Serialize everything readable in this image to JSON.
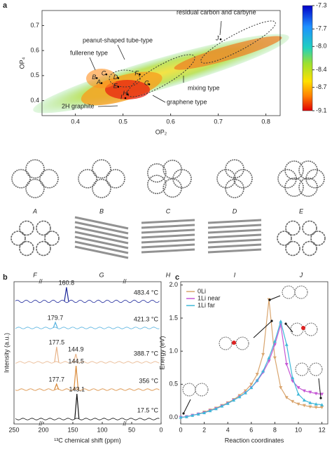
{
  "chart_data": [
    {
      "type": "scatter",
      "panel": "a",
      "x_label": "OP₂",
      "y_label": "OP₄",
      "xlim": [
        0.33,
        0.83
      ],
      "ylim": [
        0.34,
        0.76
      ],
      "xticks": [
        0.4,
        0.5,
        0.6,
        0.7,
        0.8
      ],
      "yticks": [
        0.4,
        0.5,
        0.6,
        0.7
      ],
      "colorbar": {
        "lim": [
          -9.1,
          -7.3
        ],
        "ticks": [
          -7.3,
          -7.7,
          {
            "value": -8,
            "label": "-8.0"
          },
          -8.4,
          -8.7,
          -9.1
        ]
      },
      "annotations": [
        "residual carbon and carbyne",
        "peanut-shaped tube-type",
        "fullerene type",
        "mixing type",
        "graphene type",
        "2H graphite"
      ],
      "points": {
        "labels": [
          "A",
          "B",
          "C",
          "D",
          "E",
          "F",
          "G",
          "H",
          "I",
          "J"
        ],
        "x": [
          0.455,
          0.445,
          0.465,
          0.49,
          0.49,
          0.535,
          0.555,
          0.51,
          0.505,
          0.705
        ],
        "y": [
          0.47,
          0.49,
          0.505,
          0.49,
          0.455,
          0.505,
          0.465,
          0.425,
          0.41,
          0.645
        ]
      },
      "structures": [
        "A",
        "B",
        "C",
        "D",
        "E",
        "F",
        "G",
        "H",
        "I",
        "J"
      ]
    },
    {
      "type": "spectra",
      "panel": "b",
      "x_label": "¹³C chemical shift (ppm)",
      "y_label": "Intensity (a.u.)",
      "xlim": [
        250,
        0
      ],
      "xticks": [
        250,
        200,
        150,
        100,
        50,
        0
      ],
      "series": [
        {
          "name": "483.4 °C",
          "color": "#1f2a9c",
          "peaks": [
            160.8
          ],
          "heights": [
            0.5
          ]
        },
        {
          "name": "421.3 °C",
          "color": "#5ab4e0",
          "peaks": [
            179.7
          ],
          "heights": [
            0.2
          ]
        },
        {
          "name": "388.7 °C",
          "color": "#e8b48a",
          "peaks": [
            177.5,
            144.9
          ],
          "heights": [
            0.55,
            0.3
          ]
        },
        {
          "name": "356 °C",
          "color": "#d98a3a",
          "peaks": [
            177.7,
            144.5
          ],
          "heights": [
            0.2,
            0.85
          ]
        },
        {
          "name": "17.5 °C",
          "color": "#111111",
          "peaks": [
            143.1
          ],
          "heights": [
            0.9
          ]
        }
      ]
    },
    {
      "type": "line",
      "panel": "c",
      "x_label": "Reaction coordinates",
      "y_label": "Energy (eV)",
      "xlim": [
        0,
        12.5
      ],
      "ylim": [
        -0.1,
        2.05
      ],
      "xticks": [
        0,
        2,
        4,
        6,
        8,
        10,
        12
      ],
      "yticks": [
        {
          "value": 0,
          "label": "0.0"
        },
        0.5,
        {
          "value": 1,
          "label": "1.0"
        },
        1.5,
        {
          "value": 2,
          "label": "2.0"
        }
      ],
      "legend": "upper-left",
      "x": [
        0,
        0.5,
        1,
        1.5,
        2,
        2.5,
        3,
        3.5,
        4,
        4.5,
        5,
        5.5,
        6,
        6.5,
        7,
        7.5,
        8,
        8.5,
        9,
        9.5,
        10,
        10.5,
        11,
        11.5,
        12
      ],
      "series": [
        {
          "name": "0Li",
          "color": "#d9a56e",
          "values": [
            0,
            0.01,
            0.03,
            0.05,
            0.08,
            0.11,
            0.14,
            0.18,
            0.22,
            0.27,
            0.33,
            0.4,
            0.5,
            0.65,
            0.95,
            1.78,
            0.9,
            0.45,
            0.3,
            0.24,
            0.2,
            0.18,
            0.16,
            0.15,
            0.15
          ]
        },
        {
          "name": "1Li near",
          "color": "#c557d4",
          "values": [
            0,
            0.01,
            0.03,
            0.05,
            0.07,
            0.1,
            0.13,
            0.17,
            0.21,
            0.26,
            0.31,
            0.37,
            0.45,
            0.55,
            0.68,
            0.85,
            1.1,
            1.4,
            0.8,
            0.55,
            0.45,
            0.4,
            0.38,
            0.36,
            0.35
          ]
        },
        {
          "name": "1Li far",
          "color": "#3fb8d8",
          "values": [
            0,
            0.01,
            0.03,
            0.05,
            0.07,
            0.1,
            0.13,
            0.17,
            0.21,
            0.26,
            0.31,
            0.37,
            0.45,
            0.56,
            0.7,
            0.9,
            1.15,
            1.45,
            1.1,
            0.6,
            0.35,
            0.26,
            0.22,
            0.2,
            0.19
          ]
        }
      ]
    }
  ]
}
